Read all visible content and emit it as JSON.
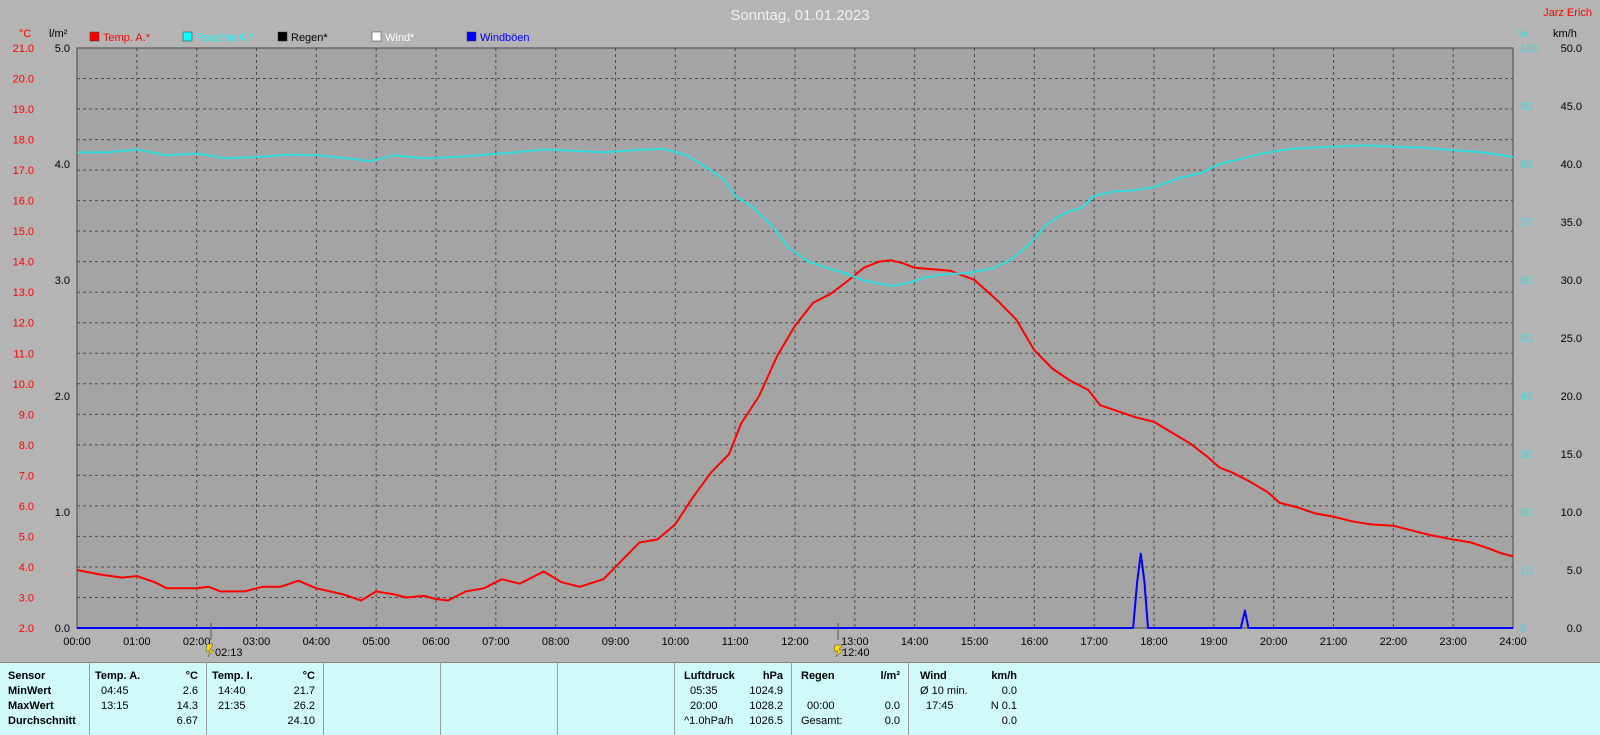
{
  "header": {
    "title": "Sonntag, 01.01.2023",
    "author": "Jarz Erich",
    "left_unit_temp": "°C",
    "left_unit_rain": "l/m²",
    "right_unit_pct": "%",
    "right_unit_wind": "km/h"
  },
  "legend": [
    {
      "label": "Temp. A.*",
      "color": "#ff0000"
    },
    {
      "label": "Feuchte A.*",
      "color": "#00ffff"
    },
    {
      "label": "Regen*",
      "color": "#000000"
    },
    {
      "label": "Wind*",
      "color": "#ffffff"
    },
    {
      "label": "Windböen",
      "color": "#0000ff"
    }
  ],
  "markers": [
    {
      "label": "02:13"
    },
    {
      "label": "12:40"
    }
  ],
  "chart_data": {
    "type": "line",
    "title": "Sonntag, 01.01.2023",
    "x_ticks": [
      "00:00",
      "01:00",
      "02:00",
      "03:00",
      "04:00",
      "05:00",
      "06:00",
      "07:00",
      "08:00",
      "09:00",
      "10:00",
      "11:00",
      "12:00",
      "13:00",
      "14:00",
      "15:00",
      "16:00",
      "17:00",
      "18:00",
      "19:00",
      "20:00",
      "21:00",
      "22:00",
      "23:00",
      "24:00"
    ],
    "xlim_hours": [
      0,
      24
    ],
    "axes": {
      "temp_ticks": [
        "21.0",
        "20.0",
        "19.0",
        "18.0",
        "17.0",
        "16.0",
        "15.0",
        "14.0",
        "13.0",
        "12.0",
        "11.0",
        "10.0",
        "9.0",
        "8.0",
        "7.0",
        "6.0",
        "5.0",
        "4.0",
        "3.0",
        "2.0"
      ],
      "temp_range": [
        2.0,
        21.0
      ],
      "rain_ticks": [
        "5.0",
        "4.0",
        "3.0",
        "2.0",
        "1.0",
        "0.0"
      ],
      "rain_range": [
        0,
        5
      ],
      "humidity_ticks": [
        "100",
        "90",
        "80",
        "70",
        "60",
        "50",
        "40",
        "30",
        "20",
        "10",
        "0"
      ],
      "humidity_range": [
        0,
        100
      ],
      "wind_ticks": [
        "50.0",
        "45.0",
        "40.0",
        "35.0",
        "30.0",
        "25.0",
        "20.0",
        "15.0",
        "10.0",
        "5.0",
        "0.0"
      ],
      "wind_range": [
        0,
        50
      ]
    },
    "grid": true,
    "series": [
      {
        "name": "Temp. A.*",
        "color": "#ff0000",
        "axis": "temp",
        "points": [
          [
            0,
            3.9
          ],
          [
            0.4,
            3.75
          ],
          [
            0.75,
            3.65
          ],
          [
            1.0,
            3.7
          ],
          [
            1.3,
            3.5
          ],
          [
            1.5,
            3.3
          ],
          [
            2.0,
            3.3
          ],
          [
            2.2,
            3.35
          ],
          [
            2.4,
            3.2
          ],
          [
            2.8,
            3.2
          ],
          [
            3.1,
            3.35
          ],
          [
            3.4,
            3.35
          ],
          [
            3.7,
            3.55
          ],
          [
            4.0,
            3.3
          ],
          [
            4.45,
            3.1
          ],
          [
            4.75,
            2.9
          ],
          [
            5.0,
            3.2
          ],
          [
            5.3,
            3.1
          ],
          [
            5.5,
            3.0
          ],
          [
            5.8,
            3.05
          ],
          [
            6.0,
            2.95
          ],
          [
            6.2,
            2.9
          ],
          [
            6.5,
            3.2
          ],
          [
            6.8,
            3.3
          ],
          [
            7.1,
            3.6
          ],
          [
            7.4,
            3.45
          ],
          [
            7.8,
            3.85
          ],
          [
            8.1,
            3.5
          ],
          [
            8.4,
            3.35
          ],
          [
            8.8,
            3.6
          ],
          [
            9.1,
            4.2
          ],
          [
            9.4,
            4.8
          ],
          [
            9.7,
            4.9
          ],
          [
            10.0,
            5.4
          ],
          [
            10.3,
            6.3
          ],
          [
            10.6,
            7.1
          ],
          [
            10.9,
            7.7
          ],
          [
            11.1,
            8.7
          ],
          [
            11.4,
            9.6
          ],
          [
            11.7,
            10.9
          ],
          [
            12.0,
            11.9
          ],
          [
            12.3,
            12.65
          ],
          [
            12.6,
            12.95
          ],
          [
            12.9,
            13.4
          ],
          [
            13.15,
            13.8
          ],
          [
            13.4,
            14.0
          ],
          [
            13.6,
            14.05
          ],
          [
            13.8,
            13.95
          ],
          [
            14.0,
            13.8
          ],
          [
            14.3,
            13.75
          ],
          [
            14.6,
            13.7
          ],
          [
            15.0,
            13.4
          ],
          [
            15.4,
            12.7
          ],
          [
            15.7,
            12.1
          ],
          [
            16.0,
            11.1
          ],
          [
            16.3,
            10.5
          ],
          [
            16.6,
            10.1
          ],
          [
            16.9,
            9.8
          ],
          [
            17.1,
            9.3
          ],
          [
            17.4,
            9.1
          ],
          [
            17.7,
            8.9
          ],
          [
            18.0,
            8.75
          ],
          [
            18.3,
            8.4
          ],
          [
            18.6,
            8.05
          ],
          [
            18.9,
            7.6
          ],
          [
            19.1,
            7.25
          ],
          [
            19.3,
            7.1
          ],
          [
            19.6,
            6.8
          ],
          [
            19.9,
            6.45
          ],
          [
            20.1,
            6.1
          ],
          [
            20.4,
            5.95
          ],
          [
            20.7,
            5.75
          ],
          [
            21.0,
            5.65
          ],
          [
            21.3,
            5.5
          ],
          [
            21.6,
            5.4
          ],
          [
            22.0,
            5.35
          ],
          [
            22.3,
            5.2
          ],
          [
            22.6,
            5.05
          ],
          [
            23.0,
            4.9
          ],
          [
            23.3,
            4.8
          ],
          [
            23.6,
            4.6
          ],
          [
            23.8,
            4.45
          ],
          [
            24.0,
            4.35
          ]
        ]
      },
      {
        "name": "Feuchte A.*",
        "color": "#30dce0",
        "axis": "humidity",
        "points": [
          [
            0,
            82
          ],
          [
            0.5,
            82
          ],
          [
            1.0,
            82.5
          ],
          [
            1.5,
            81.5
          ],
          [
            2.0,
            81.8
          ],
          [
            2.5,
            81
          ],
          [
            3.0,
            81.2
          ],
          [
            3.5,
            81.6
          ],
          [
            4.0,
            81.5
          ],
          [
            4.5,
            81
          ],
          [
            4.9,
            80.5
          ],
          [
            5.3,
            81.5
          ],
          [
            5.8,
            81
          ],
          [
            6.3,
            81.2
          ],
          [
            6.8,
            81.6
          ],
          [
            7.3,
            82
          ],
          [
            7.8,
            82.5
          ],
          [
            8.3,
            82.3
          ],
          [
            8.8,
            82
          ],
          [
            9.3,
            82.4
          ],
          [
            9.8,
            82.6
          ],
          [
            10.2,
            81.5
          ],
          [
            10.5,
            79.5
          ],
          [
            10.8,
            77.5
          ],
          [
            11.0,
            74.5
          ],
          [
            11.3,
            72.5
          ],
          [
            11.6,
            69.5
          ],
          [
            11.9,
            65.5
          ],
          [
            12.2,
            63.3
          ],
          [
            12.5,
            62.2
          ],
          [
            12.8,
            61.3
          ],
          [
            13.2,
            59.8
          ],
          [
            13.6,
            59
          ],
          [
            13.9,
            59.5
          ],
          [
            14.2,
            60.5
          ],
          [
            14.5,
            61
          ],
          [
            14.9,
            61.2
          ],
          [
            15.3,
            62
          ],
          [
            15.6,
            63.5
          ],
          [
            15.9,
            66
          ],
          [
            16.2,
            69.5
          ],
          [
            16.5,
            71.5
          ],
          [
            16.8,
            72.5
          ],
          [
            17.0,
            74.5
          ],
          [
            17.3,
            75.2
          ],
          [
            17.6,
            75.4
          ],
          [
            18.0,
            76
          ],
          [
            18.4,
            77.5
          ],
          [
            18.8,
            78.5
          ],
          [
            19.1,
            80
          ],
          [
            19.5,
            81
          ],
          [
            19.8,
            81.8
          ],
          [
            20.2,
            82.5
          ],
          [
            20.6,
            82.8
          ],
          [
            21.0,
            83
          ],
          [
            21.5,
            83.2
          ],
          [
            22.0,
            83
          ],
          [
            22.5,
            82.8
          ],
          [
            23.0,
            82.4
          ],
          [
            23.5,
            82
          ],
          [
            24.0,
            81.2
          ]
        ]
      },
      {
        "name": "Windböen",
        "color": "#0000ff",
        "axis": "wind",
        "points": [
          [
            0,
            0
          ],
          [
            17.65,
            0
          ],
          [
            17.72,
            4
          ],
          [
            17.78,
            6.4
          ],
          [
            17.84,
            4
          ],
          [
            17.9,
            0
          ],
          [
            19.45,
            0
          ],
          [
            19.52,
            1.5
          ],
          [
            19.58,
            0
          ],
          [
            24,
            0
          ]
        ]
      }
    ]
  },
  "footer": {
    "sensor": {
      "header": "Sensor",
      "rows": [
        "MinWert",
        "MaxWert",
        "Durchschnitt"
      ]
    },
    "temp_a": {
      "header": "Temp. A.",
      "unit": "°C",
      "min_time": "04:45",
      "min_val": "2.6",
      "max_time": "13:15",
      "max_val": "14.3",
      "avg": "6.67"
    },
    "temp_i": {
      "header": "Temp. I.",
      "unit": "°C",
      "min_time": "14:40",
      "min_val": "21.7",
      "max_time": "21:35",
      "max_val": "26.2",
      "avg": "24.10"
    },
    "pressure": {
      "header": "Luftdruck",
      "unit": "hPa",
      "min_time": "05:35",
      "min_val": "1024.9",
      "max_time": "20:00",
      "max_val": "1028.2",
      "trend_label": "^1.0hPa/h",
      "avg": "1026.5"
    },
    "rain": {
      "header": "Regen",
      "unit": "l/m²",
      "time": "00:00",
      "val": "0.0",
      "total_label": "Gesamt:",
      "total": "0.0"
    },
    "wind": {
      "header": "Wind",
      "unit": "km/h",
      "row1_label": "Ø 10 min.",
      "row1_val": "0.0",
      "row2_time": "17:45",
      "row2_val": "N 0.1",
      "row3_val": "0.0"
    }
  }
}
